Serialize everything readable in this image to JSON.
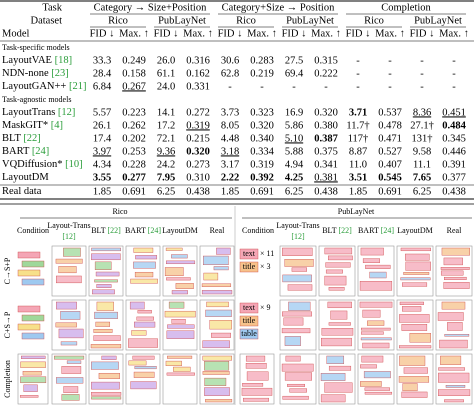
{
  "table": {
    "header": {
      "task": "Task",
      "dataset": "Dataset",
      "model": "Model",
      "tasks": [
        "Category → Size+Position",
        "Category+Size → Position",
        "Completion"
      ],
      "datasets": [
        "Rico",
        "PubLayNet"
      ],
      "metrics": [
        "FID ↓",
        "Max. ↑"
      ]
    },
    "groups": [
      {
        "label": "Task-specific models",
        "rows": [
          {
            "name": "LayoutVAE",
            "ref": "[18]",
            "cells": [
              "33.3",
              "0.249",
              "26.0",
              "0.316",
              "30.6",
              "0.283",
              "27.5",
              "0.315",
              "-",
              "-",
              "-",
              "-"
            ],
            "bold": [],
            "underline": []
          },
          {
            "name": "NDN-none",
            "ref": "[23]",
            "cells": [
              "28.4",
              "0.158",
              "61.1",
              "0.162",
              "62.8",
              "0.219",
              "69.4",
              "0.222",
              "-",
              "-",
              "-",
              "-"
            ],
            "bold": [],
            "underline": []
          },
          {
            "name": "LayoutGAN++",
            "ref": "[21]",
            "cells": [
              "6.84",
              "0.267",
              "24.0",
              "0.331",
              "-",
              "-",
              "-",
              "-",
              "-",
              "-",
              "-",
              "-"
            ],
            "bold": [],
            "underline": [
              1
            ]
          }
        ]
      },
      {
        "label": "Task-agnostic models",
        "rows": [
          {
            "name": "LayoutTrans",
            "ref": "[12]",
            "cells": [
              "5.57",
              "0.223",
              "14.1",
              "0.272",
              "3.73",
              "0.323",
              "16.9",
              "0.320",
              "3.71",
              "0.537",
              "8.36",
              "0.451"
            ],
            "bold": [
              8
            ],
            "underline": [
              10,
              11
            ]
          },
          {
            "name": "MaskGIT*",
            "ref": "[4]",
            "cells": [
              "26.1",
              "0.262",
              "17.2",
              "0.319",
              "8.05",
              "0.320",
              "5.86",
              "0.380",
              "11.7†",
              "0.478",
              "27.1†",
              "0.484"
            ],
            "bold": [
              11
            ],
            "underline": [
              3
            ]
          },
          {
            "name": "BLT",
            "ref": "[22]",
            "cells": [
              "17.4",
              "0.202",
              "72.1",
              "0.215",
              "4.48",
              "0.340",
              "5.10",
              "0.387",
              "117†",
              "0.471",
              "131†",
              "0.345"
            ],
            "bold": [
              7
            ],
            "underline": [
              6
            ]
          },
          {
            "name": "BART",
            "ref": "[24]",
            "cells": [
              "3.97",
              "0.253",
              "9.36",
              "0.320",
              "3.18",
              "0.334",
              "5.88",
              "0.375",
              "8.87",
              "0.527",
              "9.58",
              "0.446"
            ],
            "bold": [
              3
            ],
            "underline": [
              0,
              2,
              4
            ]
          },
          {
            "name": "VQDiffusion*",
            "ref": "[10]",
            "cells": [
              "4.34",
              "0.228",
              "24.2",
              "0.273",
              "3.17",
              "0.319",
              "4.94",
              "0.341",
              "11.0",
              "0.407",
              "11.1",
              "0.391"
            ],
            "bold": [],
            "underline": []
          },
          {
            "name": "LayoutDM",
            "cells": [
              "3.55",
              "0.277",
              "7.95",
              "0.310",
              "2.22",
              "0.392",
              "4.25",
              "0.381",
              "3.51",
              "0.545",
              "7.65",
              "0.377"
            ],
            "bold": [
              0,
              1,
              2,
              4,
              5,
              6,
              8,
              9,
              10
            ],
            "underline": [
              7
            ]
          }
        ]
      }
    ],
    "real": {
      "name": "Real data",
      "cells": [
        "1.85",
        "0.691",
        "6.25",
        "0.438",
        "1.85",
        "0.691",
        "6.25",
        "0.438",
        "1.85",
        "0.691",
        "6.25",
        "0.438"
      ]
    }
  },
  "figure": {
    "datasets": [
      "Rico",
      "PubLayNet"
    ],
    "columns": [
      {
        "name": "Condition"
      },
      {
        "name": "Layout-Trans",
        "ref": "[12]"
      },
      {
        "name": "BLT",
        "ref": "[22]"
      },
      {
        "name": "BART",
        "ref": "[24]"
      },
      {
        "name": "LayoutDM"
      },
      {
        "name": "Real"
      }
    ],
    "rows": [
      "C→S+P",
      "C+S→P",
      "Completion"
    ],
    "pub_conditions": [
      [
        {
          "label": "text",
          "count": "× 11"
        },
        {
          "label": "title",
          "count": "× 3"
        }
      ],
      [
        {
          "label": "text",
          "count": "× 9"
        },
        {
          "label": "title"
        },
        {
          "label": "table"
        }
      ],
      []
    ]
  }
}
